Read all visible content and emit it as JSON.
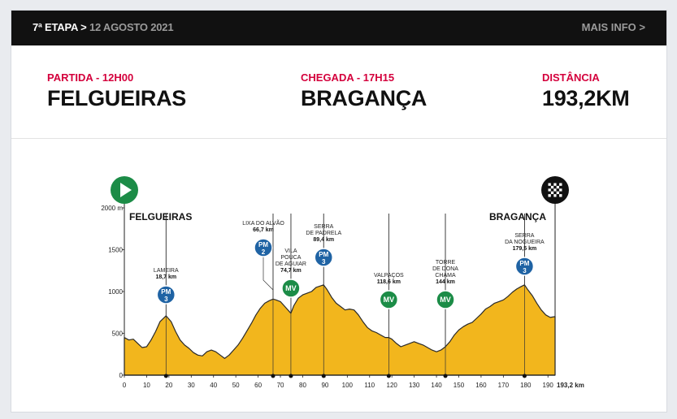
{
  "header": {
    "stage_label": "7ª ETAPA >",
    "date": "12 AGOSTO 2021",
    "more_info": "MAIS INFO >"
  },
  "summary": {
    "start_label": "PARTIDA - 12H00",
    "start_city": "FELGUEIRAS",
    "finish_label": "CHEGADA - 17H15",
    "finish_city": "BRAGANÇA",
    "distance_label": "DISTÂNCIA",
    "distance_value": "193,2KM"
  },
  "colors": {
    "accent": "#d4003c",
    "profile_fill": "#f2b61d",
    "pm_badge": "#1f63a4",
    "mv_badge": "#1c8c47"
  },
  "chart_data": {
    "type": "area",
    "start_label": "FELGUEIRAS",
    "finish_label": "BRAGANÇA",
    "y_unit": "m",
    "y_ticks": [
      "2000 m",
      "1500",
      "1000",
      "500",
      "0"
    ],
    "x_ticks": [
      0,
      10,
      20,
      30,
      40,
      50,
      60,
      70,
      80,
      90,
      100,
      110,
      120,
      130,
      140,
      150,
      160,
      170,
      180,
      190
    ],
    "x_end_label": "193,2 km",
    "xlim": [
      0,
      193.2
    ],
    "ylim": [
      0,
      2000
    ],
    "profile": [
      [
        0,
        450
      ],
      [
        2,
        420
      ],
      [
        4,
        430
      ],
      [
        6,
        380
      ],
      [
        8,
        330
      ],
      [
        10,
        340
      ],
      [
        12,
        420
      ],
      [
        14,
        520
      ],
      [
        16,
        640
      ],
      [
        18.7,
        710
      ],
      [
        21,
        640
      ],
      [
        23,
        520
      ],
      [
        25,
        420
      ],
      [
        27,
        360
      ],
      [
        29,
        320
      ],
      [
        31,
        270
      ],
      [
        33,
        240
      ],
      [
        35,
        230
      ],
      [
        37,
        280
      ],
      [
        39,
        300
      ],
      [
        41,
        280
      ],
      [
        43,
        240
      ],
      [
        45,
        200
      ],
      [
        47,
        240
      ],
      [
        49,
        300
      ],
      [
        51,
        360
      ],
      [
        53,
        440
      ],
      [
        55,
        530
      ],
      [
        57,
        620
      ],
      [
        59,
        720
      ],
      [
        61,
        800
      ],
      [
        63,
        860
      ],
      [
        65,
        890
      ],
      [
        66.7,
        910
      ],
      [
        68,
        900
      ],
      [
        70,
        880
      ],
      [
        72,
        820
      ],
      [
        74.7,
        740
      ],
      [
        76,
        830
      ],
      [
        78,
        920
      ],
      [
        80,
        960
      ],
      [
        82,
        980
      ],
      [
        84,
        1000
      ],
      [
        86,
        1050
      ],
      [
        89.4,
        1080
      ],
      [
        91,
        1020
      ],
      [
        93,
        930
      ],
      [
        95,
        860
      ],
      [
        97,
        820
      ],
      [
        99,
        780
      ],
      [
        101,
        790
      ],
      [
        103,
        780
      ],
      [
        105,
        720
      ],
      [
        107,
        640
      ],
      [
        109,
        570
      ],
      [
        111,
        530
      ],
      [
        113,
        510
      ],
      [
        115,
        480
      ],
      [
        117,
        450
      ],
      [
        118.6,
        450
      ],
      [
        120,
        430
      ],
      [
        122,
        380
      ],
      [
        124,
        340
      ],
      [
        126,
        360
      ],
      [
        128,
        380
      ],
      [
        130,
        400
      ],
      [
        132,
        380
      ],
      [
        134,
        360
      ],
      [
        136,
        330
      ],
      [
        138,
        300
      ],
      [
        140,
        280
      ],
      [
        142,
        300
      ],
      [
        144,
        340
      ],
      [
        146,
        400
      ],
      [
        148,
        480
      ],
      [
        150,
        540
      ],
      [
        152,
        580
      ],
      [
        154,
        610
      ],
      [
        156,
        630
      ],
      [
        158,
        680
      ],
      [
        160,
        730
      ],
      [
        162,
        790
      ],
      [
        164,
        820
      ],
      [
        166,
        860
      ],
      [
        168,
        880
      ],
      [
        170,
        900
      ],
      [
        172,
        940
      ],
      [
        174,
        990
      ],
      [
        176,
        1030
      ],
      [
        178,
        1060
      ],
      [
        179.5,
        1080
      ],
      [
        181,
        1020
      ],
      [
        183,
        950
      ],
      [
        185,
        860
      ],
      [
        187,
        780
      ],
      [
        189,
        720
      ],
      [
        191,
        690
      ],
      [
        193.2,
        700
      ]
    ],
    "annotations": [
      {
        "km": 18.7,
        "name": "LAMEIRA",
        "dist": "18,7 km",
        "type": "PM",
        "cat": "3"
      },
      {
        "km": 66.7,
        "name": "LIXA DO ALVÃO",
        "dist": "66,7 km",
        "type": "PM",
        "cat": "2"
      },
      {
        "km": 74.7,
        "name": "VILA POUCA DE AGUIAR",
        "dist": "74,7 km",
        "type": "MV",
        "cat": ""
      },
      {
        "km": 89.4,
        "name": "SERRA DE PADRELA",
        "dist": "89,4 km",
        "type": "PM",
        "cat": "3"
      },
      {
        "km": 118.6,
        "name": "VALPAÇOS",
        "dist": "118,6 km",
        "type": "MV",
        "cat": ""
      },
      {
        "km": 144,
        "name": "TORRE DE DONA CHAMA",
        "dist": "144 km",
        "type": "MV",
        "cat": ""
      },
      {
        "km": 179.5,
        "name": "SERRA DA NOGUEIRA",
        "dist": "179,5 km",
        "type": "PM",
        "cat": "3"
      }
    ]
  }
}
